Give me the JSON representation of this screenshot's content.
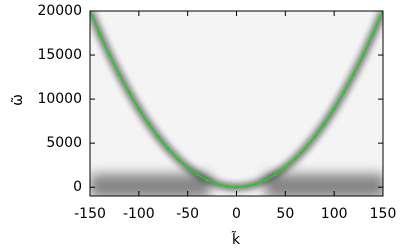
{
  "chart_data": {
    "type": "line",
    "x_label": "k̃",
    "y_label": "ω̃",
    "x": [
      -150,
      -140,
      -130,
      -120,
      -110,
      -100,
      -90,
      -80,
      -70,
      -60,
      -50,
      -40,
      -30,
      -20,
      -10,
      0,
      10,
      20,
      30,
      40,
      50,
      60,
      70,
      80,
      90,
      100,
      110,
      120,
      130,
      140,
      150
    ],
    "series": [
      {
        "color": "#22cc22",
        "values": [
          20000,
          17422,
          15022,
          12800,
          10756,
          8889,
          7200,
          5689,
          4356,
          3200,
          2222,
          1422,
          800,
          356,
          89,
          0,
          89,
          356,
          800,
          1422,
          2222,
          3200,
          4356,
          5689,
          7200,
          8889,
          10756,
          12800,
          15022,
          17422,
          20000
        ]
      }
    ],
    "xlim": [
      -150,
      150
    ],
    "ylim": [
      -1000,
      20000
    ],
    "xticks": [
      -150,
      -100,
      -50,
      0,
      50,
      100,
      150
    ],
    "yticks": [
      0,
      5000,
      10000,
      15000,
      20000
    ],
    "grid": false
  }
}
